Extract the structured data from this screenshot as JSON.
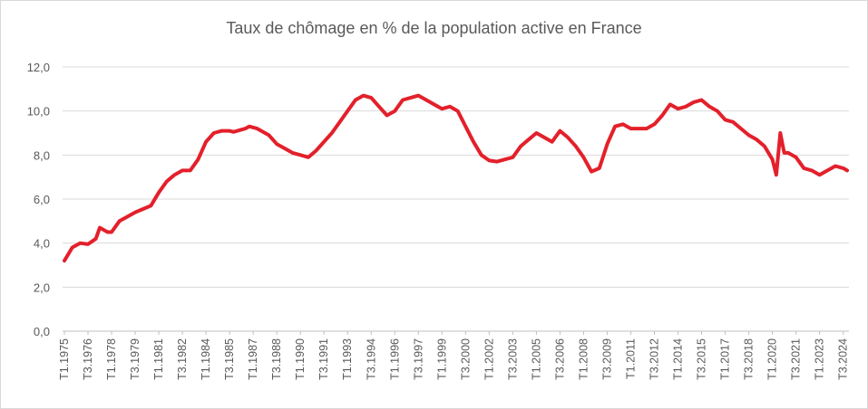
{
  "chart_data": {
    "type": "line",
    "title": "Taux de chômage en % de la population active en France",
    "xlabel": "",
    "ylabel": "",
    "ylim": [
      0,
      12
    ],
    "y_ticks": [
      "0,0",
      "2,0",
      "4,0",
      "6,0",
      "8,0",
      "10,0",
      "12,0"
    ],
    "y_tick_values": [
      0,
      2,
      4,
      6,
      8,
      10,
      12
    ],
    "x_tick_labels": [
      "T1.1975",
      "T3.1976",
      "T1.1978",
      "T3.1979",
      "T1.1981",
      "T3.1982",
      "T1.1984",
      "T3.1985",
      "T1.1987",
      "T3.1988",
      "T1.1990",
      "T3.1991",
      "T1.1993",
      "T3.1994",
      "T1.1996",
      "T3.1997",
      "T1.1999",
      "T3.2000",
      "T1.2002",
      "T3.2003",
      "T1.2005",
      "T3.2006",
      "T1.2008",
      "T3.2009",
      "T1.2011",
      "T3.2012",
      "T1.2014",
      "T3.2015",
      "T1.2017",
      "T3.2018",
      "T1.2020",
      "T3.2021",
      "T1.2023",
      "T3.2024"
    ],
    "grid": true,
    "legend": "none",
    "line_color": "#e3202b",
    "series": [
      {
        "x_start": "T1.1975",
        "points": [
          [
            "T1.1975",
            3.2
          ],
          [
            "T3.1975",
            3.8
          ],
          [
            "T1.1976",
            4.0
          ],
          [
            "T3.1976",
            3.95
          ],
          [
            "T1.1977",
            4.2
          ],
          [
            "T2.1977",
            4.7
          ],
          [
            "T4.1977",
            4.5
          ],
          [
            "T1.1978",
            4.5
          ],
          [
            "T3.1978",
            5.0
          ],
          [
            "T1.1979",
            5.2
          ],
          [
            "T3.1979",
            5.4
          ],
          [
            "T1.1980",
            5.55
          ],
          [
            "T3.1980",
            5.7
          ],
          [
            "T1.1981",
            6.3
          ],
          [
            "T3.1981",
            6.8
          ],
          [
            "T1.1982",
            7.1
          ],
          [
            "T3.1982",
            7.3
          ],
          [
            "T1.1983",
            7.3
          ],
          [
            "T3.1983",
            7.8
          ],
          [
            "T1.1984",
            8.6
          ],
          [
            "T3.1984",
            9.0
          ],
          [
            "T1.1985",
            9.1
          ],
          [
            "T3.1985",
            9.1
          ],
          [
            "T4.1985",
            9.05
          ],
          [
            "T1.1986",
            9.1
          ],
          [
            "T3.1986",
            9.2
          ],
          [
            "T4.1986",
            9.3
          ],
          [
            "T2.1987",
            9.2
          ],
          [
            "T1.1988",
            8.9
          ],
          [
            "T3.1988",
            8.5
          ],
          [
            "T1.1989",
            8.3
          ],
          [
            "T3.1989",
            8.1
          ],
          [
            "T1.1990",
            8.0
          ],
          [
            "T3.1990",
            7.9
          ],
          [
            "T1.1991",
            8.2
          ],
          [
            "T3.1991",
            8.6
          ],
          [
            "T1.1992",
            9.0
          ],
          [
            "T3.1992",
            9.5
          ],
          [
            "T1.1993",
            10.0
          ],
          [
            "T3.1993",
            10.5
          ],
          [
            "T1.1994",
            10.7
          ],
          [
            "T3.1994",
            10.6
          ],
          [
            "T1.1995",
            10.2
          ],
          [
            "T3.1995",
            9.8
          ],
          [
            "T1.1996",
            10.0
          ],
          [
            "T3.1996",
            10.5
          ],
          [
            "T1.1997",
            10.6
          ],
          [
            "T3.1997",
            10.7
          ],
          [
            "T1.1998",
            10.5
          ],
          [
            "T3.1998",
            10.3
          ],
          [
            "T1.1999",
            10.1
          ],
          [
            "T3.1999",
            10.2
          ],
          [
            "T1.2000",
            10.0
          ],
          [
            "T3.2000",
            9.3
          ],
          [
            "T1.2001",
            8.6
          ],
          [
            "T3.2001",
            8.0
          ],
          [
            "T1.2002",
            7.75
          ],
          [
            "T3.2002",
            7.7
          ],
          [
            "T1.2003",
            7.8
          ],
          [
            "T3.2003",
            7.9
          ],
          [
            "T1.2004",
            8.4
          ],
          [
            "T3.2004",
            8.7
          ],
          [
            "T1.2005",
            9.0
          ],
          [
            "T3.2005",
            8.8
          ],
          [
            "T1.2006",
            8.6
          ],
          [
            "T3.2006",
            9.1
          ],
          [
            "T1.2007",
            8.8
          ],
          [
            "T3.2007",
            8.4
          ],
          [
            "T1.2008",
            7.9
          ],
          [
            "T3.2008",
            7.25
          ],
          [
            "T1.2009",
            7.4
          ],
          [
            "T3.2009",
            8.5
          ],
          [
            "T1.2010",
            9.3
          ],
          [
            "T3.2010",
            9.4
          ],
          [
            "T1.2011",
            9.2
          ],
          [
            "T3.2011",
            9.2
          ],
          [
            "T1.2012",
            9.2
          ],
          [
            "T3.2012",
            9.4
          ],
          [
            "T1.2013",
            9.8
          ],
          [
            "T3.2013",
            10.3
          ],
          [
            "T1.2014",
            10.1
          ],
          [
            "T3.2014",
            10.2
          ],
          [
            "T1.2015",
            10.4
          ],
          [
            "T3.2015",
            10.5
          ],
          [
            "T1.2016",
            10.2
          ],
          [
            "T3.2016",
            10.0
          ],
          [
            "T1.2017",
            9.6
          ],
          [
            "T3.2017",
            9.5
          ],
          [
            "T1.2018",
            9.2
          ],
          [
            "T3.2018",
            8.9
          ],
          [
            "T1.2019",
            8.7
          ],
          [
            "T3.2019",
            8.4
          ],
          [
            "T1.2020",
            7.8
          ],
          [
            "T2.2020",
            7.1
          ],
          [
            "T3.2020",
            9.0
          ],
          [
            "T4.2020",
            8.1
          ],
          [
            "T1.2021",
            8.1
          ],
          [
            "T3.2021",
            7.9
          ],
          [
            "T1.2022",
            7.4
          ],
          [
            "T3.2022",
            7.3
          ],
          [
            "T1.2023",
            7.1
          ],
          [
            "T3.2023",
            7.3
          ],
          [
            "T1.2024",
            7.5
          ],
          [
            "T3.2024",
            7.4
          ],
          [
            "T4.2024",
            7.3
          ]
        ]
      }
    ]
  }
}
